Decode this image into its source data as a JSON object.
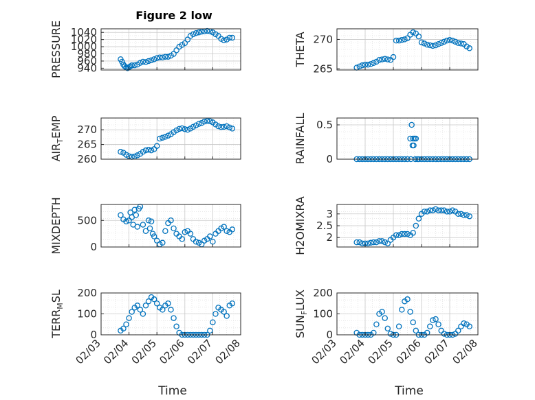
{
  "figure": {
    "title": "Figure 2 low",
    "x_tick_labels": [
      "02/03",
      "02/04",
      "02/05",
      "02/06",
      "02/07",
      "02/08"
    ],
    "x_axis_label": "Time"
  },
  "colors": {
    "marker": "#0072BD",
    "grid": "#d9d9d9",
    "axis": "#262626"
  },
  "chart_data": [
    {
      "type": "scatter",
      "title": "Figure 2 low",
      "ylabel": "PRESSURE",
      "xlabel": "Time",
      "xlim": [
        0,
        5
      ],
      "ylim": [
        935,
        1050
      ],
      "yticks": [
        940,
        960,
        980,
        1000,
        1020,
        1040
      ],
      "grid": true,
      "marker": "circle",
      "x": [
        0.7,
        0.75,
        0.8,
        0.85,
        0.9,
        0.95,
        1.0,
        1.05,
        1.1,
        1.2,
        1.3,
        1.4,
        1.5,
        1.6,
        1.7,
        1.8,
        1.9,
        2.0,
        2.1,
        2.2,
        2.3,
        2.4,
        2.5,
        2.6,
        2.7,
        2.8,
        2.9,
        3.0,
        3.1,
        3.2,
        3.3,
        3.4,
        3.5,
        3.6,
        3.7,
        3.8,
        3.9,
        4.0,
        4.1,
        4.2,
        4.3,
        4.4,
        4.5,
        4.6,
        4.7
      ],
      "y": [
        965,
        958,
        950,
        945,
        942,
        940,
        943,
        945,
        948,
        948,
        950,
        955,
        958,
        957,
        960,
        962,
        965,
        968,
        970,
        970,
        972,
        972,
        975,
        980,
        990,
        1000,
        1005,
        1010,
        1020,
        1030,
        1035,
        1038,
        1040,
        1042,
        1043,
        1044,
        1043,
        1040,
        1035,
        1030,
        1022,
        1018,
        1020,
        1025,
        1025
      ]
    },
    {
      "type": "scatter",
      "ylabel": "THETA",
      "xlim": [
        0,
        5
      ],
      "ylim": [
        264.8,
        271.8
      ],
      "yticks": [
        265,
        270
      ],
      "grid": true,
      "marker": "circle",
      "x": [
        0.7,
        0.8,
        0.9,
        1.0,
        1.1,
        1.2,
        1.3,
        1.4,
        1.5,
        1.6,
        1.7,
        1.8,
        1.9,
        2.0,
        2.1,
        2.2,
        2.3,
        2.4,
        2.5,
        2.6,
        2.7,
        2.8,
        2.9,
        3.0,
        3.1,
        3.2,
        3.3,
        3.4,
        3.5,
        3.6,
        3.7,
        3.8,
        3.9,
        4.0,
        4.1,
        4.2,
        4.3,
        4.4,
        4.5,
        4.6,
        4.7
      ],
      "y": [
        265.2,
        265.4,
        265.6,
        265.7,
        265.7,
        265.8,
        266.0,
        266.2,
        266.5,
        266.6,
        266.7,
        266.6,
        266.5,
        267.0,
        269.8,
        269.8,
        269.9,
        270.0,
        270.2,
        270.8,
        271.2,
        271.0,
        270.5,
        269.5,
        269.3,
        269.1,
        269.0,
        268.9,
        269.0,
        269.2,
        269.4,
        269.6,
        269.8,
        269.9,
        269.8,
        269.6,
        269.4,
        269.3,
        269.2,
        268.8,
        268.5
      ]
    },
    {
      "type": "scatter",
      "ylabel": "AIR_TEMP",
      "xlim": [
        0,
        5
      ],
      "ylim": [
        260,
        274
      ],
      "yticks": [
        260,
        265,
        270
      ],
      "grid": true,
      "marker": "circle",
      "x": [
        0.7,
        0.8,
        0.9,
        1.0,
        1.1,
        1.2,
        1.3,
        1.4,
        1.5,
        1.6,
        1.7,
        1.8,
        1.9,
        2.0,
        2.1,
        2.2,
        2.3,
        2.4,
        2.5,
        2.6,
        2.7,
        2.8,
        2.9,
        3.0,
        3.1,
        3.2,
        3.3,
        3.4,
        3.5,
        3.6,
        3.7,
        3.8,
        3.9,
        4.0,
        4.1,
        4.2,
        4.3,
        4.4,
        4.5,
        4.6,
        4.7
      ],
      "y": [
        262.5,
        262.2,
        261.5,
        261.0,
        260.8,
        260.9,
        261.3,
        261.8,
        262.5,
        263.0,
        263.2,
        263.0,
        263.4,
        264.5,
        267.0,
        267.3,
        267.6,
        268.0,
        268.5,
        269.2,
        269.8,
        270.3,
        270.5,
        270.2,
        270.0,
        270.4,
        271.0,
        271.5,
        272.0,
        272.3,
        272.8,
        273.0,
        272.9,
        272.5,
        271.8,
        271.2,
        270.9,
        271.0,
        271.2,
        270.8,
        270.4
      ]
    },
    {
      "type": "scatter",
      "ylabel": "RAINFALL",
      "xlim": [
        0,
        5
      ],
      "ylim": [
        0,
        0.6
      ],
      "yticks": [
        0,
        0.5
      ],
      "grid": true,
      "marker": "circle",
      "x": [
        0.7,
        0.8,
        0.9,
        1.0,
        1.1,
        1.2,
        1.3,
        1.4,
        1.5,
        1.6,
        1.7,
        1.8,
        1.9,
        2.0,
        2.1,
        2.2,
        2.3,
        2.4,
        2.5,
        2.6,
        2.62,
        2.65,
        2.68,
        2.7,
        2.72,
        2.75,
        2.78,
        2.8,
        2.85,
        2.9,
        3.0,
        3.1,
        3.2,
        3.3,
        3.4,
        3.5,
        3.6,
        3.7,
        3.8,
        3.9,
        4.0,
        4.1,
        4.2,
        4.3,
        4.4,
        4.5,
        4.6,
        4.7
      ],
      "y": [
        0,
        0,
        0,
        0,
        0,
        0,
        0,
        0,
        0,
        0,
        0,
        0,
        0,
        0,
        0,
        0,
        0,
        0,
        0,
        0.3,
        0,
        0.5,
        0.2,
        0.3,
        0.2,
        0.3,
        0,
        0.3,
        0,
        0,
        0,
        0,
        0,
        0,
        0,
        0,
        0,
        0,
        0,
        0,
        0,
        0,
        0,
        0,
        0,
        0,
        0,
        0
      ]
    },
    {
      "type": "scatter",
      "ylabel": "MIXDEPTH",
      "xlim": [
        0,
        5
      ],
      "ylim": [
        0,
        800
      ],
      "yticks": [
        0,
        500
      ],
      "grid": true,
      "marker": "circle",
      "x": [
        0.7,
        0.8,
        0.9,
        1.0,
        1.05,
        1.1,
        1.15,
        1.2,
        1.25,
        1.3,
        1.35,
        1.4,
        1.5,
        1.6,
        1.7,
        1.75,
        1.8,
        1.85,
        1.9,
        2.0,
        2.1,
        2.2,
        2.3,
        2.4,
        2.5,
        2.6,
        2.7,
        2.8,
        2.9,
        3.0,
        3.1,
        3.2,
        3.3,
        3.4,
        3.5,
        3.6,
        3.7,
        3.8,
        3.9,
        4.0,
        4.1,
        4.2,
        4.3,
        4.4,
        4.5,
        4.6,
        4.7
      ],
      "y": [
        600,
        520,
        480,
        500,
        650,
        560,
        420,
        700,
        600,
        380,
        720,
        760,
        420,
        300,
        500,
        350,
        480,
        250,
        200,
        120,
        50,
        80,
        300,
        450,
        500,
        350,
        250,
        200,
        150,
        280,
        300,
        250,
        150,
        100,
        80,
        50,
        120,
        150,
        200,
        100,
        250,
        300,
        350,
        380,
        300,
        280,
        330
      ]
    },
    {
      "type": "scatter",
      "ylabel": "H2OMIXRA",
      "xlim": [
        0,
        5
      ],
      "ylim": [
        1.6,
        3.4
      ],
      "yticks": [
        2,
        2.5,
        3
      ],
      "grid": true,
      "marker": "circle",
      "x": [
        0.7,
        0.8,
        0.9,
        1.0,
        1.1,
        1.2,
        1.3,
        1.4,
        1.5,
        1.6,
        1.7,
        1.8,
        1.9,
        2.0,
        2.1,
        2.2,
        2.3,
        2.4,
        2.5,
        2.6,
        2.7,
        2.8,
        2.9,
        3.0,
        3.1,
        3.2,
        3.3,
        3.4,
        3.5,
        3.6,
        3.7,
        3.8,
        3.9,
        4.0,
        4.1,
        4.2,
        4.3,
        4.4,
        4.5,
        4.6,
        4.7
      ],
      "y": [
        1.8,
        1.8,
        1.75,
        1.75,
        1.75,
        1.78,
        1.8,
        1.8,
        1.85,
        1.85,
        1.8,
        1.75,
        1.9,
        2.0,
        2.1,
        2.1,
        2.15,
        2.15,
        2.15,
        2.1,
        2.2,
        2.5,
        2.8,
        3.0,
        3.1,
        3.1,
        3.15,
        3.15,
        3.2,
        3.15,
        3.15,
        3.15,
        3.1,
        3.1,
        3.15,
        3.1,
        3.0,
        3.0,
        2.95,
        2.95,
        2.9
      ]
    },
    {
      "type": "scatter",
      "ylabel": "TERR_MSL",
      "xlim": [
        0,
        5
      ],
      "ylim": [
        0,
        200
      ],
      "yticks": [
        0,
        100,
        200
      ],
      "grid": true,
      "marker": "circle",
      "x": [
        0.7,
        0.8,
        0.9,
        1.0,
        1.1,
        1.2,
        1.3,
        1.4,
        1.5,
        1.6,
        1.7,
        1.8,
        1.9,
        2.0,
        2.1,
        2.2,
        2.3,
        2.4,
        2.5,
        2.6,
        2.7,
        2.8,
        2.9,
        3.0,
        3.1,
        3.2,
        3.3,
        3.4,
        3.5,
        3.6,
        3.7,
        3.8,
        3.9,
        4.0,
        4.1,
        4.2,
        4.3,
        4.4,
        4.5,
        4.6,
        4.7
      ],
      "y": [
        20,
        30,
        50,
        80,
        110,
        130,
        140,
        120,
        100,
        140,
        160,
        180,
        170,
        150,
        130,
        120,
        140,
        150,
        120,
        80,
        40,
        10,
        0,
        0,
        0,
        0,
        0,
        0,
        0,
        0,
        0,
        0,
        20,
        60,
        100,
        130,
        120,
        110,
        90,
        140,
        150
      ]
    },
    {
      "type": "scatter",
      "ylabel": "SUN_FLUX",
      "xlim": [
        0,
        5
      ],
      "ylim": [
        0,
        200
      ],
      "yticks": [
        0,
        100,
        200
      ],
      "grid": true,
      "marker": "circle",
      "x": [
        0.7,
        0.8,
        0.9,
        1.0,
        1.1,
        1.2,
        1.3,
        1.4,
        1.5,
        1.6,
        1.7,
        1.8,
        1.9,
        2.0,
        2.1,
        2.2,
        2.3,
        2.4,
        2.5,
        2.6,
        2.7,
        2.8,
        2.9,
        3.0,
        3.1,
        3.2,
        3.3,
        3.4,
        3.5,
        3.6,
        3.7,
        3.8,
        3.9,
        4.0,
        4.1,
        4.2,
        4.3,
        4.4,
        4.5,
        4.6,
        4.7
      ],
      "y": [
        10,
        0,
        0,
        0,
        0,
        0,
        10,
        50,
        100,
        110,
        80,
        30,
        5,
        0,
        0,
        40,
        120,
        160,
        170,
        110,
        60,
        20,
        0,
        0,
        0,
        10,
        40,
        70,
        75,
        50,
        20,
        5,
        0,
        0,
        0,
        5,
        20,
        40,
        55,
        50,
        40
      ]
    }
  ]
}
